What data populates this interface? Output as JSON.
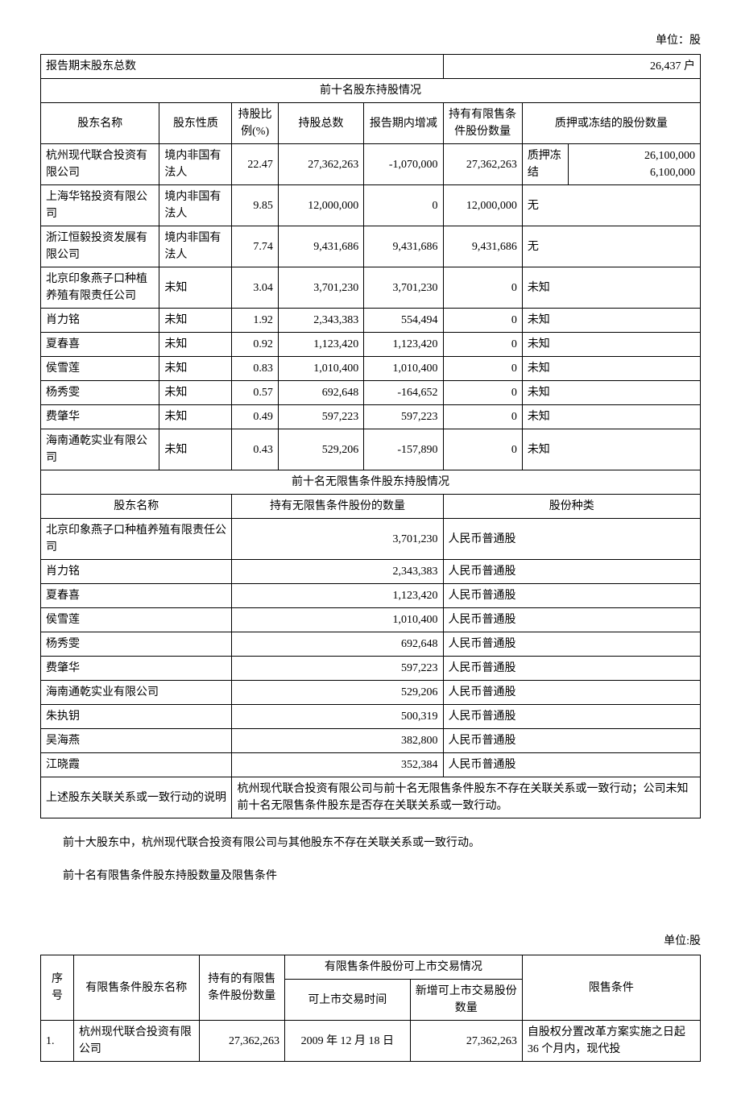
{
  "unit_label": "单位：股",
  "summary": {
    "label": "报告期末股东总数",
    "value": "26,437 户"
  },
  "table1": {
    "section_title": "前十名股东持股情况",
    "headers": {
      "name": "股东名称",
      "nature": "股东性质",
      "ratio": "持股比例(%)",
      "total": "持股总数",
      "change": "报告期内增减",
      "restricted": "持有有限售条件股份数量",
      "pledge": "质押或冻结的股份数量"
    },
    "rows": [
      {
        "name": "杭州现代联合投资有限公司",
        "nature": "境内非国有法人",
        "ratio": "22.47",
        "total": "27,362,263",
        "change": "-1,070,000",
        "restricted": "27,362,263",
        "pledge_label": "质押冻结",
        "pledge_val": "26,100,000\n6,100,000"
      },
      {
        "name": "上海华铭投资有限公司",
        "nature": "境内非国有法人",
        "ratio": "9.85",
        "total": "12,000,000",
        "change": "0",
        "restricted": "12,000,000",
        "pledge_label": "无",
        "pledge_val": ""
      },
      {
        "name": "浙江恒毅投资发展有限公司",
        "nature": "境内非国有法人",
        "ratio": "7.74",
        "total": "9,431,686",
        "change": "9,431,686",
        "restricted": "9,431,686",
        "pledge_label": "无",
        "pledge_val": ""
      },
      {
        "name": "北京印象燕子口种植养殖有限责任公司",
        "nature": "未知",
        "ratio": "3.04",
        "total": "3,701,230",
        "change": "3,701,230",
        "restricted": "0",
        "pledge_label": "未知",
        "pledge_val": ""
      },
      {
        "name": "肖力铭",
        "nature": "未知",
        "ratio": "1.92",
        "total": "2,343,383",
        "change": "554,494",
        "restricted": "0",
        "pledge_label": "未知",
        "pledge_val": ""
      },
      {
        "name": "夏春喜",
        "nature": "未知",
        "ratio": "0.92",
        "total": "1,123,420",
        "change": "1,123,420",
        "restricted": "0",
        "pledge_label": "未知",
        "pledge_val": ""
      },
      {
        "name": "侯雪莲",
        "nature": "未知",
        "ratio": "0.83",
        "total": "1,010,400",
        "change": "1,010,400",
        "restricted": "0",
        "pledge_label": "未知",
        "pledge_val": ""
      },
      {
        "name": "杨秀雯",
        "nature": "未知",
        "ratio": "0.57",
        "total": "692,648",
        "change": "-164,652",
        "restricted": "0",
        "pledge_label": "未知",
        "pledge_val": ""
      },
      {
        "name": "费肇华",
        "nature": "未知",
        "ratio": "0.49",
        "total": "597,223",
        "change": "597,223",
        "restricted": "0",
        "pledge_label": "未知",
        "pledge_val": ""
      },
      {
        "name": "海南通乾实业有限公司",
        "nature": "未知",
        "ratio": "0.43",
        "total": "529,206",
        "change": "-157,890",
        "restricted": "0",
        "pledge_label": "未知",
        "pledge_val": ""
      }
    ]
  },
  "table2": {
    "section_title": "前十名无限售条件股东持股情况",
    "headers": {
      "name": "股东名称",
      "qty": "持有无限售条件股份的数量",
      "type": "股份种类"
    },
    "rows": [
      {
        "name": "北京印象燕子口种植养殖有限责任公司",
        "qty": "3,701,230",
        "type": "人民币普通股"
      },
      {
        "name": "肖力铭",
        "qty": "2,343,383",
        "type": "人民币普通股"
      },
      {
        "name": "夏春喜",
        "qty": "1,123,420",
        "type": "人民币普通股"
      },
      {
        "name": "侯雪莲",
        "qty": "1,010,400",
        "type": "人民币普通股"
      },
      {
        "name": "杨秀雯",
        "qty": "692,648",
        "type": "人民币普通股"
      },
      {
        "name": "费肇华",
        "qty": "597,223",
        "type": "人民币普通股"
      },
      {
        "name": "海南通乾实业有限公司",
        "qty": "529,206",
        "type": "人民币普通股"
      },
      {
        "name": "朱执钥",
        "qty": "500,319",
        "type": "人民币普通股"
      },
      {
        "name": "吴海燕",
        "qty": "382,800",
        "type": "人民币普通股"
      },
      {
        "name": "江晓霞",
        "qty": "352,384",
        "type": "人民币普通股"
      }
    ],
    "relation_label": "上述股东关联关系或一致行动的说明",
    "relation_text": "杭州现代联合投资有限公司与前十名无限售条件股东不存在关联关系或一致行动；公司未知前十名无限售条件股东是否存在关联关系或一致行动。"
  },
  "para1": "前十大股东中，杭州现代联合投资有限公司与其他股东不存在关联关系或一致行动。",
  "para2": "前十名有限售条件股东持股数量及限售条件",
  "unit_label2": "单位:股",
  "table3": {
    "headers": {
      "seq": "序号",
      "name": "有限售条件股东名称",
      "qty": "持有的有限售条件股份数量",
      "trade_group": "有限售条件股份可上市交易情况",
      "trade_time": "可上市交易时间",
      "trade_add": "新增可上市交易股份数量",
      "condition": "限售条件"
    },
    "rows": [
      {
        "seq": "1.",
        "name": "杭州现代联合投资有限公司",
        "qty": "27,362,263",
        "trade_time": "2009 年 12 月 18 日",
        "trade_add": "27,362,263",
        "condition": "自股权分置改革方案实施之日起 36 个月内，现代投"
      }
    ]
  }
}
